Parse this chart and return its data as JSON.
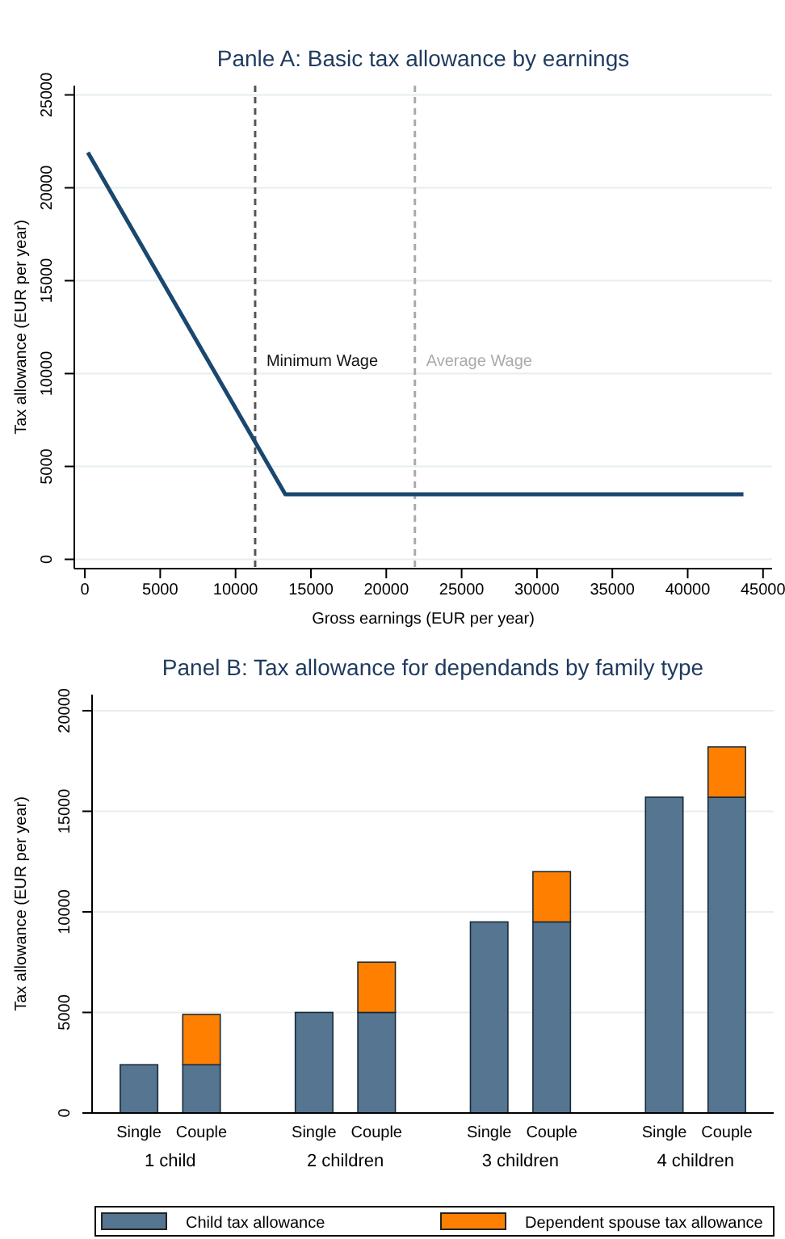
{
  "chart_data": [
    {
      "type": "line",
      "title": "Panle A: Basic tax allowance by earnings",
      "xlabel": "Gross earnings (EUR per year)",
      "ylabel": "Tax allowance (EUR per year)",
      "series": [
        {
          "color": "#1a476f",
          "x": [
            200,
            13300,
            43700
          ],
          "values": [
            21900,
            3500,
            3500
          ]
        }
      ],
      "xlim": [
        -700,
        45600
      ],
      "xticks": [
        0,
        5000,
        10000,
        15000,
        20000,
        25000,
        30000,
        35000,
        40000,
        45000
      ],
      "ylim": [
        -500,
        25500
      ],
      "yticks": [
        0,
        5000,
        10000,
        15000,
        20000,
        25000
      ],
      "ref_lines": [
        {
          "axis": "x",
          "value": 11300,
          "label": "Minimum Wage",
          "color": "#555555",
          "line_style": "dashed"
        },
        {
          "axis": "x",
          "value": 21900,
          "label": "Average Wage",
          "color": "#aaaaaa",
          "line_style": "dashed"
        }
      ],
      "grid": "y",
      "legend": false,
      "marker": "none",
      "line_style": "solid"
    },
    {
      "type": "bar",
      "title": "Panel B: Tax allowance for dependands by family type",
      "ylabel": "Tax allowance (EUR per year)",
      "categories": [
        "Single",
        "Couple",
        "Single",
        "Couple",
        "Single",
        "Couple",
        "Single",
        "Couple"
      ],
      "annotations": [
        "1 child",
        "2 children",
        "3 children",
        "4 children"
      ],
      "series": [
        {
          "name": "Child tax allowance",
          "color": "#557591",
          "values": [
            2400,
            2400,
            5000,
            5000,
            9500,
            9500,
            15700,
            15700
          ]
        },
        {
          "name": "Dependent spouse tax allowance",
          "color": "#ff8000",
          "values": [
            null,
            2500,
            null,
            2500,
            null,
            2500,
            null,
            2500
          ]
        }
      ],
      "stacked": true,
      "ylim": [
        0,
        20800
      ],
      "yticks": [
        0,
        5000,
        10000,
        15000,
        20000
      ],
      "grid": "y",
      "legend": "bottom"
    }
  ]
}
